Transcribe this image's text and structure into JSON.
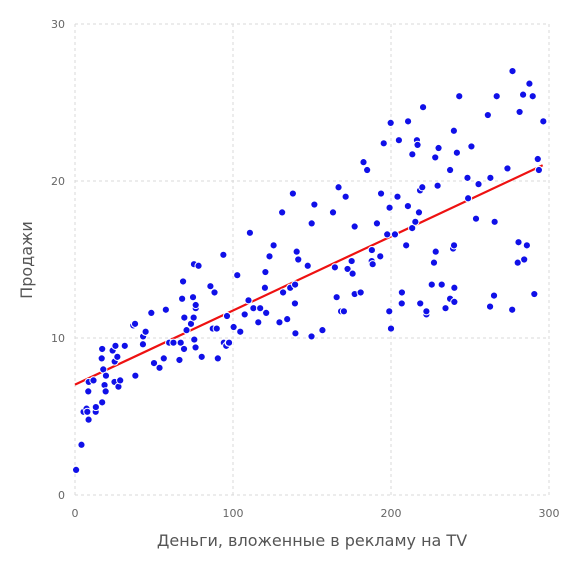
{
  "chart_data": {
    "type": "scatter",
    "title": "",
    "xlabel": "Деньги, вложенные в рекламу на TV",
    "ylabel": "Продажи",
    "xlim": [
      0,
      300
    ],
    "ylim": [
      0,
      30
    ],
    "x_ticks": [
      0,
      100,
      200,
      300
    ],
    "y_ticks": [
      0,
      10,
      20,
      30
    ],
    "x_tick_labels": [
      "0",
      "100",
      "200",
      "300"
    ],
    "y_tick_labels": [
      "0",
      "10",
      "20",
      "30"
    ],
    "grid": true,
    "colors": {
      "points": "#1010e8",
      "point_edge": "#ffffff",
      "fit_line": "#ee1111",
      "grid": "#d9d9d9"
    },
    "fit_line": {
      "x": [
        0,
        296
      ],
      "y": [
        7.03,
        21.0
      ]
    },
    "points": [
      [
        0.7,
        1.6
      ],
      [
        4.1,
        3.2
      ],
      [
        5.4,
        5.3
      ],
      [
        7.3,
        5.5
      ],
      [
        7.8,
        5.3
      ],
      [
        8.4,
        6.6
      ],
      [
        8.6,
        4.8
      ],
      [
        8.7,
        7.2
      ],
      [
        11.7,
        7.3
      ],
      [
        13.1,
        5.3
      ],
      [
        13.2,
        5.6
      ],
      [
        16.9,
        8.7
      ],
      [
        17.2,
        5.9
      ],
      [
        17.2,
        9.3
      ],
      [
        17.9,
        8.0
      ],
      [
        18.7,
        7.0
      ],
      [
        19.4,
        6.6
      ],
      [
        19.6,
        7.6
      ],
      [
        23.8,
        9.2
      ],
      [
        25.0,
        7.2
      ],
      [
        25.1,
        8.5
      ],
      [
        25.6,
        9.5
      ],
      [
        26.8,
        8.8
      ],
      [
        27.5,
        6.9
      ],
      [
        28.6,
        7.3
      ],
      [
        31.5,
        9.5
      ],
      [
        36.9,
        10.8
      ],
      [
        38.0,
        10.9
      ],
      [
        38.2,
        7.6
      ],
      [
        43.0,
        9.6
      ],
      [
        43.1,
        10.1
      ],
      [
        44.5,
        10.4
      ],
      [
        44.7,
        10.4
      ],
      [
        48.3,
        11.6
      ],
      [
        50.0,
        8.4
      ],
      [
        53.5,
        8.1
      ],
      [
        56.2,
        8.7
      ],
      [
        57.5,
        11.8
      ],
      [
        59.6,
        9.7
      ],
      [
        62.3,
        9.7
      ],
      [
        66.1,
        8.6
      ],
      [
        66.9,
        9.7
      ],
      [
        67.8,
        12.5
      ],
      [
        68.4,
        13.6
      ],
      [
        69.0,
        9.3
      ],
      [
        69.2,
        11.3
      ],
      [
        70.6,
        10.5
      ],
      [
        73.4,
        10.9
      ],
      [
        74.7,
        12.6
      ],
      [
        75.1,
        11.3
      ],
      [
        75.3,
        14.7
      ],
      [
        75.5,
        9.9
      ],
      [
        76.3,
        9.4
      ],
      [
        76.4,
        11.9
      ],
      [
        76.4,
        12.1
      ],
      [
        78.2,
        14.6
      ],
      [
        80.2,
        8.8
      ],
      [
        85.7,
        13.3
      ],
      [
        87.2,
        10.6
      ],
      [
        88.3,
        12.9
      ],
      [
        89.7,
        10.6
      ],
      [
        90.4,
        8.7
      ],
      [
        93.9,
        15.3
      ],
      [
        94.2,
        9.7
      ],
      [
        95.7,
        9.5
      ],
      [
        96.2,
        11.4
      ],
      [
        97.2,
        9.7
      ],
      [
        97.5,
        9.7
      ],
      [
        100.4,
        10.7
      ],
      [
        102.7,
        14.0
      ],
      [
        104.6,
        10.4
      ],
      [
        107.4,
        11.5
      ],
      [
        109.8,
        12.4
      ],
      [
        110.7,
        16.7
      ],
      [
        112.9,
        11.9
      ],
      [
        116.0,
        11.0
      ],
      [
        117.2,
        11.9
      ],
      [
        120.2,
        13.2
      ],
      [
        120.5,
        14.2
      ],
      [
        121.0,
        11.6
      ],
      [
        123.1,
        15.2
      ],
      [
        125.7,
        15.9
      ],
      [
        129.4,
        11.0
      ],
      [
        131.1,
        18.0
      ],
      [
        131.7,
        12.9
      ],
      [
        134.3,
        11.2
      ],
      [
        136.2,
        13.2
      ],
      [
        137.9,
        19.2
      ],
      [
        139.2,
        12.2
      ],
      [
        139.3,
        13.4
      ],
      [
        139.5,
        10.3
      ],
      [
        140.3,
        15.5
      ],
      [
        141.3,
        15.0
      ],
      [
        147.3,
        14.6
      ],
      [
        149.7,
        10.1
      ],
      [
        149.8,
        17.3
      ],
      [
        151.5,
        18.5
      ],
      [
        156.6,
        10.5
      ],
      [
        163.3,
        18.0
      ],
      [
        164.5,
        14.5
      ],
      [
        165.6,
        12.6
      ],
      [
        166.8,
        19.6
      ],
      [
        168.4,
        11.7
      ],
      [
        170.2,
        11.7
      ],
      [
        171.3,
        19.0
      ],
      [
        172.5,
        14.4
      ],
      [
        175.1,
        14.9
      ],
      [
        175.7,
        14.1
      ],
      [
        177.0,
        17.1
      ],
      [
        177.0,
        12.8
      ],
      [
        180.8,
        12.9
      ],
      [
        182.6,
        21.2
      ],
      [
        184.9,
        20.7
      ],
      [
        187.9,
        15.6
      ],
      [
        187.8,
        14.9
      ],
      [
        188.4,
        14.7
      ],
      [
        191.1,
        17.3
      ],
      [
        193.2,
        15.2
      ],
      [
        193.7,
        19.2
      ],
      [
        195.4,
        22.4
      ],
      [
        197.6,
        16.6
      ],
      [
        198.9,
        11.7
      ],
      [
        199.1,
        18.3
      ],
      [
        199.8,
        23.7
      ],
      [
        200.0,
        10.6
      ],
      [
        202.5,
        16.6
      ],
      [
        204.1,
        19.0
      ],
      [
        205.0,
        22.6
      ],
      [
        206.8,
        12.2
      ],
      [
        206.9,
        12.9
      ],
      [
        209.6,
        15.9
      ],
      [
        210.7,
        18.4
      ],
      [
        210.8,
        23.8
      ],
      [
        213.4,
        17.0
      ],
      [
        213.5,
        21.7
      ],
      [
        215.4,
        17.4
      ],
      [
        216.4,
        22.6
      ],
      [
        216.8,
        22.3
      ],
      [
        217.7,
        18.0
      ],
      [
        218.4,
        19.4
      ],
      [
        218.5,
        12.2
      ],
      [
        219.8,
        19.6
      ],
      [
        220.3,
        24.7
      ],
      [
        222.4,
        11.5
      ],
      [
        222.4,
        11.7
      ],
      [
        225.8,
        13.4
      ],
      [
        227.2,
        14.8
      ],
      [
        228.0,
        21.5
      ],
      [
        228.3,
        15.5
      ],
      [
        229.5,
        19.7
      ],
      [
        230.1,
        22.1
      ],
      [
        232.1,
        13.4
      ],
      [
        234.5,
        11.9
      ],
      [
        237.4,
        12.5
      ],
      [
        237.4,
        20.7
      ],
      [
        239.3,
        15.7
      ],
      [
        239.8,
        23.2
      ],
      [
        239.9,
        15.9
      ],
      [
        240.1,
        13.2
      ],
      [
        240.1,
        12.3
      ],
      [
        241.7,
        21.8
      ],
      [
        243.2,
        25.4
      ],
      [
        248.4,
        20.2
      ],
      [
        248.8,
        18.9
      ],
      [
        250.9,
        22.2
      ],
      [
        253.8,
        17.6
      ],
      [
        255.4,
        19.8
      ],
      [
        261.3,
        24.2
      ],
      [
        262.7,
        12.0
      ],
      [
        262.9,
        20.2
      ],
      [
        265.2,
        12.7
      ],
      [
        265.6,
        17.4
      ],
      [
        266.9,
        25.4
      ],
      [
        273.7,
        20.8
      ],
      [
        276.7,
        11.8
      ],
      [
        276.9,
        27.0
      ],
      [
        280.2,
        14.8
      ],
      [
        280.7,
        16.1
      ],
      [
        281.4,
        24.4
      ],
      [
        283.6,
        25.5
      ],
      [
        284.3,
        15.0
      ],
      [
        286.0,
        15.9
      ],
      [
        287.6,
        26.2
      ],
      [
        289.7,
        25.4
      ],
      [
        290.7,
        12.8
      ],
      [
        292.9,
        21.4
      ],
      [
        293.6,
        20.7
      ],
      [
        296.4,
        23.8
      ]
    ]
  }
}
